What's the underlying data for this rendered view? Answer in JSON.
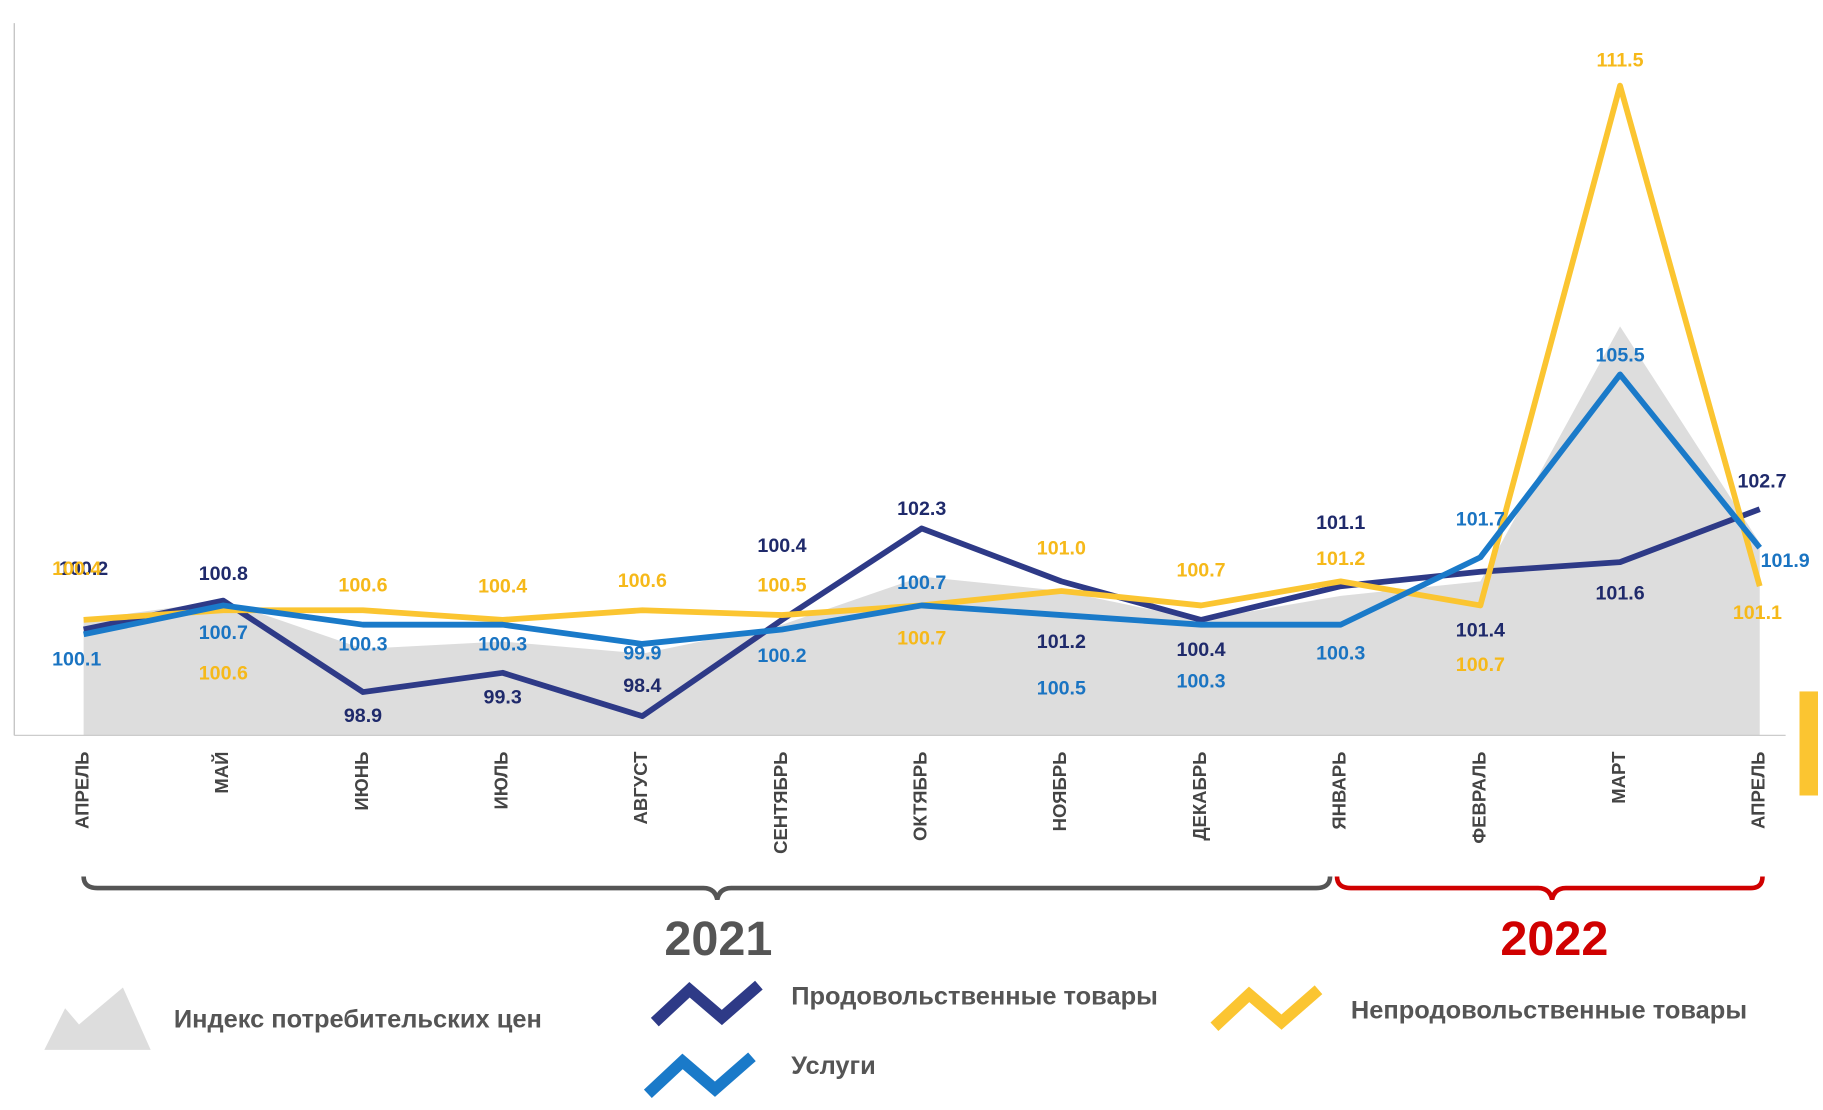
{
  "chart_data": {
    "type": "line",
    "categories": [
      "АПРЕЛЬ",
      "МАЙ",
      "ИЮНЬ",
      "ИЮЛЬ",
      "АВГУСТ",
      "СЕНТЯБРЬ",
      "ОКТЯБРЬ",
      "НОЯБРЬ",
      "ДЕКАБРЬ",
      "ЯНВАРЬ",
      "ФЕВРАЛЬ",
      "МАРТ",
      "АПРЕЛЬ"
    ],
    "ylim": [
      98,
      112.8
    ],
    "series": [
      {
        "name": "Индекс потребительских  цен",
        "kind": "area",
        "color": "#dddddd",
        "values": [
          100.4,
          100.8,
          99.8,
          99.95,
          99.7,
          100.3,
          101.3,
          101.0,
          100.4,
          100.9,
          101.2,
          106.5,
          102.0
        ]
      },
      {
        "name": "Продовольственные товары",
        "color": "#2e3a87",
        "label_color": "#1f2a6b",
        "values": [
          100.2,
          100.8,
          98.9,
          99.3,
          98.4,
          100.4,
          102.3,
          101.2,
          100.4,
          101.1,
          101.4,
          101.6,
          102.7
        ]
      },
      {
        "name": "Непродовольственные товары",
        "color": "#fbc531",
        "label_color": "#f6b91a",
        "values": [
          100.4,
          100.6,
          100.6,
          100.4,
          100.6,
          100.5,
          100.7,
          101.0,
          100.7,
          101.2,
          100.7,
          111.5,
          101.1
        ]
      },
      {
        "name": "Услуги",
        "color": "#1a7ac9",
        "label_color": "#1a74c2",
        "values": [
          100.1,
          100.7,
          100.3,
          100.3,
          99.9,
          100.2,
          100.7,
          100.5,
          100.3,
          100.3,
          101.7,
          105.5,
          101.9
        ]
      }
    ],
    "annotations": [
      {
        "text": "2021",
        "color": "#555555"
      },
      {
        "text": "2022",
        "color": "#d00000"
      }
    ]
  }
}
